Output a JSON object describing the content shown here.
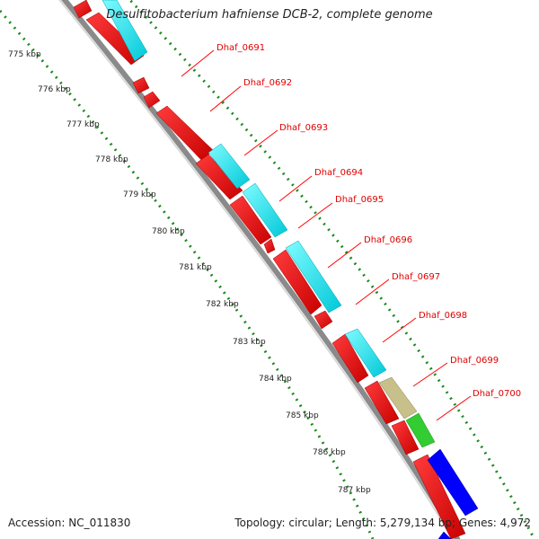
{
  "title": "Desulfitobacterium hafniense DCB-2, complete genome",
  "footer": {
    "accession": "Accession: NC_011830",
    "summary": "Topology: circular; Length: 5,279,134 bp; Genes: 4,972"
  },
  "colors": {
    "reverse_strand_cds": "#ff0000",
    "forward_strand_cds": "#00ffff",
    "olive_feature": "#c8c08a",
    "green_feature": "#33cc33",
    "blue_feature": "#0000ff",
    "backbone": "#888888",
    "ruler_ticks": "#1a8a1a",
    "label_lines": "#ff0000"
  },
  "ruler": {
    "unit": "kbp",
    "ticks": [
      "775 kbp",
      "776 kbp",
      "777 kbp",
      "778 kbp",
      "779 kbp",
      "780 kbp",
      "781 kbp",
      "782 kbp",
      "783 kbp",
      "784 kbp",
      "785 kbp",
      "786 kbp",
      "787 kbp"
    ]
  },
  "gene_labels": [
    "Dhaf_0691",
    "Dhaf_0692",
    "Dhaf_0693",
    "Dhaf_0694",
    "Dhaf_0695",
    "Dhaf_0696",
    "Dhaf_0697",
    "Dhaf_0698",
    "Dhaf_0699",
    "Dhaf_0700"
  ]
}
